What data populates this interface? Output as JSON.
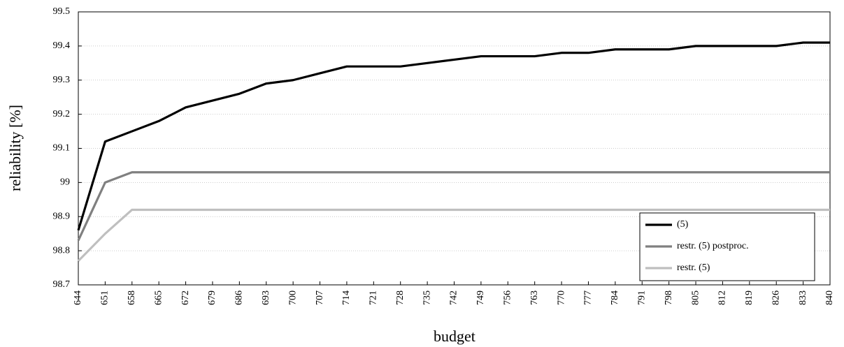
{
  "chart_data": {
    "type": "line",
    "xlabel": "budget",
    "ylabel": "reliability [%]",
    "x": [
      644,
      651,
      658,
      665,
      672,
      679,
      686,
      693,
      700,
      707,
      714,
      721,
      728,
      735,
      742,
      749,
      756,
      763,
      770,
      777,
      784,
      791,
      798,
      805,
      812,
      819,
      826,
      833,
      840
    ],
    "xlim": [
      644,
      840
    ],
    "xticks": [
      644,
      651,
      658,
      665,
      672,
      679,
      686,
      693,
      700,
      707,
      714,
      721,
      728,
      735,
      742,
      749,
      756,
      763,
      770,
      777,
      784,
      791,
      798,
      805,
      812,
      819,
      826,
      833,
      840
    ],
    "ylim": [
      98.7,
      99.5
    ],
    "yticks": [
      98.7,
      98.8,
      98.9,
      99,
      99.1,
      99.2,
      99.3,
      99.4,
      99.5
    ],
    "grid": true,
    "legend": "lower right",
    "series": [
      {
        "name": "(5)",
        "color": "#000000",
        "values": [
          98.86,
          99.12,
          99.15,
          99.18,
          99.22,
          99.24,
          99.26,
          99.29,
          99.3,
          99.32,
          99.34,
          99.34,
          99.34,
          99.35,
          99.36,
          99.37,
          99.37,
          99.37,
          99.38,
          99.38,
          99.39,
          99.39,
          99.39,
          99.4,
          99.4,
          99.4,
          99.4,
          99.41,
          99.41
        ]
      },
      {
        "name": "restr. (5) postproc.",
        "color": "#808080",
        "values": [
          98.83,
          99.0,
          99.03,
          99.03,
          99.03,
          99.03,
          99.03,
          99.03,
          99.03,
          99.03,
          99.03,
          99.03,
          99.03,
          99.03,
          99.03,
          99.03,
          99.03,
          99.03,
          99.03,
          99.03,
          99.03,
          99.03,
          99.03,
          99.03,
          99.03,
          99.03,
          99.03,
          99.03,
          99.03
        ]
      },
      {
        "name": "restr. (5)",
        "color": "#bfbfbf",
        "values": [
          98.77,
          98.85,
          98.92,
          98.92,
          98.92,
          98.92,
          98.92,
          98.92,
          98.92,
          98.92,
          98.92,
          98.92,
          98.92,
          98.92,
          98.92,
          98.92,
          98.92,
          98.92,
          98.92,
          98.92,
          98.92,
          98.92,
          98.92,
          98.92,
          98.92,
          98.92,
          98.92,
          98.92,
          98.92
        ]
      }
    ]
  }
}
